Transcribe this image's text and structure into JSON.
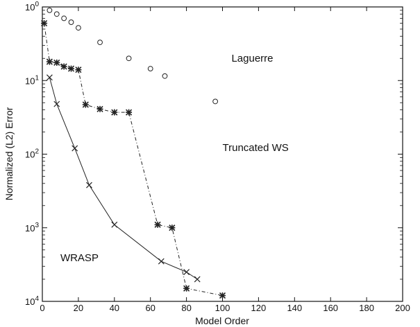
{
  "chart_data": {
    "type": "scatter",
    "xlabel": "Model Order",
    "ylabel": "Normalized (L2) Error",
    "xlim": [
      0,
      200
    ],
    "ylim": [
      0.0001,
      1
    ],
    "yscale": "log",
    "grid": false,
    "x_ticks": [
      0,
      20,
      40,
      60,
      80,
      100,
      120,
      140,
      160,
      180,
      200
    ],
    "x_tick_labels": [
      "0",
      "20",
      "40",
      "60",
      "80",
      "100",
      "120",
      "140",
      "160",
      "180",
      "200"
    ],
    "y_ticks": [
      {
        "value": 1,
        "base": "10",
        "exp": "0"
      },
      {
        "value": 0.1,
        "base": "10",
        "exp": "1"
      },
      {
        "value": 0.01,
        "base": "10",
        "exp": "2"
      },
      {
        "value": 0.001,
        "base": "10",
        "exp": "3"
      },
      {
        "value": 0.0001,
        "base": "10",
        "exp": "4"
      }
    ],
    "annotations": [
      {
        "text": "Laguerre",
        "x": 105,
        "y": 0.18
      },
      {
        "text": "Truncated WS",
        "x": 100,
        "y": 0.011
      },
      {
        "text": "WRASP",
        "x": 10,
        "y": 0.00035
      }
    ],
    "series": [
      {
        "marker": "circle",
        "line": "none",
        "color": "#222222",
        "x": [
          4,
          8,
          12,
          16,
          20,
          32,
          48,
          60,
          68,
          96
        ],
        "y": [
          0.9,
          0.8,
          0.7,
          0.62,
          0.52,
          0.33,
          0.2,
          0.145,
          0.115,
          0.052
        ]
      },
      {
        "marker": "star",
        "line": "dashdot",
        "color": "#222222",
        "x": [
          1,
          4,
          8,
          12,
          16,
          20,
          24,
          32,
          40,
          48,
          64,
          72,
          80,
          100
        ],
        "y": [
          0.6,
          0.18,
          0.175,
          0.155,
          0.145,
          0.14,
          0.047,
          0.041,
          0.037,
          0.037,
          0.0011,
          0.001,
          0.00015,
          0.00012
        ]
      },
      {
        "marker": "x",
        "line": "solid",
        "color": "#222222",
        "x": [
          4,
          8,
          18,
          26,
          40,
          66,
          80,
          86
        ],
        "y": [
          0.11,
          0.048,
          0.012,
          0.0038,
          0.0011,
          0.00035,
          0.00025,
          0.0002
        ]
      }
    ]
  }
}
